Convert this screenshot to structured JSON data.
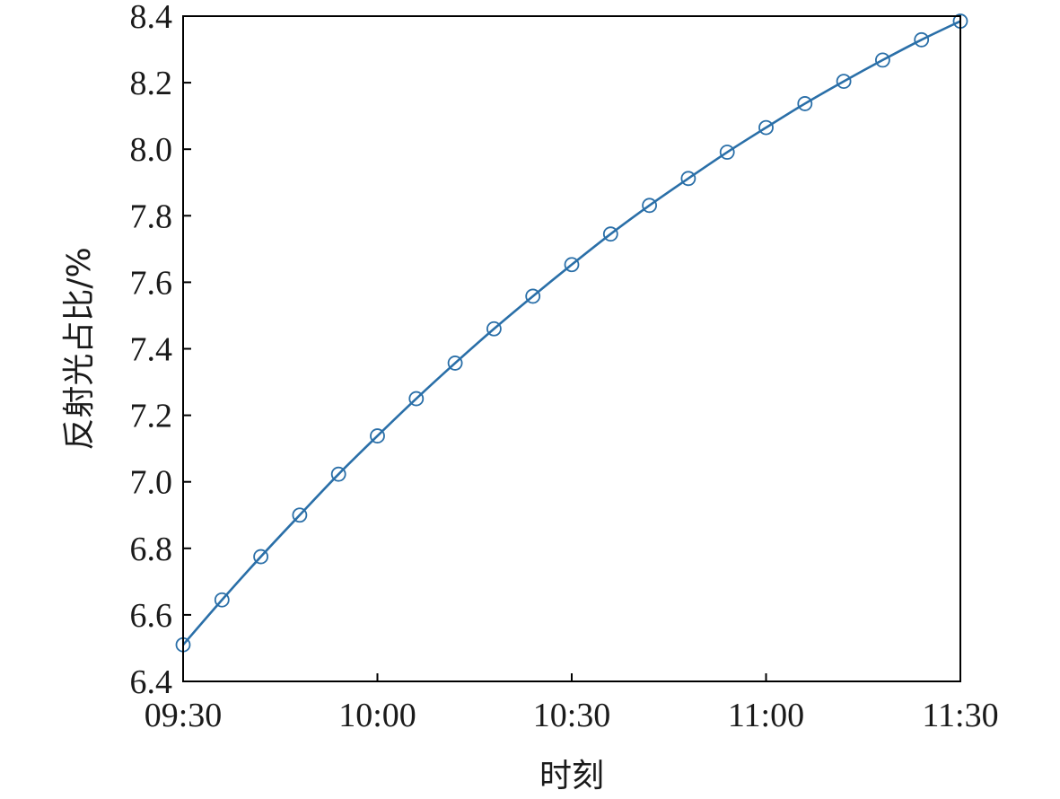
{
  "chart_data": {
    "type": "line",
    "title": "",
    "xlabel": "时刻",
    "ylabel": "反射光占比/%",
    "x_ticks": [
      "09:30",
      "10:00",
      "10:30",
      "11:00",
      "11:30"
    ],
    "x_range": [
      "09:30",
      "11:30"
    ],
    "y_ticks": [
      "6.4",
      "6.6",
      "6.8",
      "7.0",
      "7.2",
      "7.4",
      "7.6",
      "7.8",
      "8.0",
      "8.2",
      "8.4"
    ],
    "ylim": [
      6.4,
      8.4
    ],
    "grid": false,
    "series": [
      {
        "color": "#2a6fa8",
        "marker": "circle",
        "x": [
          "09:30",
          "09:36",
          "09:42",
          "09:48",
          "09:54",
          "10:00",
          "10:06",
          "10:12",
          "10:18",
          "10:24",
          "10:30",
          "10:36",
          "10:42",
          "10:48",
          "10:54",
          "11:00",
          "11:06",
          "11:12",
          "11:18",
          "11:24",
          "11:30"
        ],
        "values": [
          6.51,
          6.645,
          6.775,
          6.9,
          7.023,
          7.138,
          7.25,
          7.357,
          7.46,
          7.558,
          7.653,
          7.745,
          7.831,
          7.912,
          7.991,
          8.065,
          8.137,
          8.204,
          8.268,
          8.329,
          8.385
        ]
      }
    ]
  }
}
